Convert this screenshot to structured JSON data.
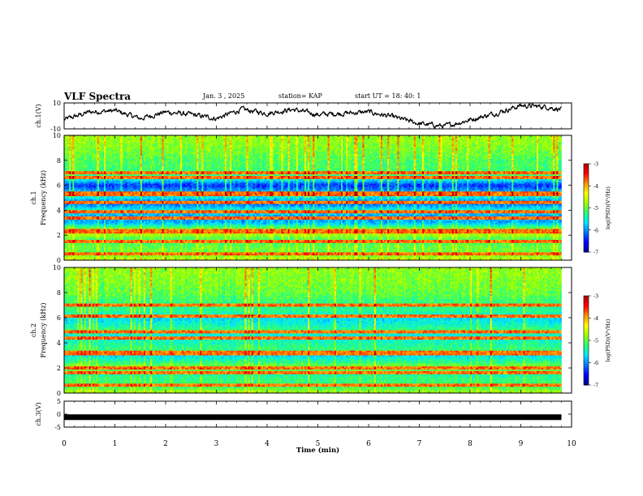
{
  "header": {
    "title": "VLF Spectra",
    "date": "Jan. 3 , 2025",
    "station": "station= KAP",
    "start": "start UT = 18: 40: 1"
  },
  "colors": {
    "trace": "#000000",
    "colormap": [
      "#00008c",
      "#0000ff",
      "#0078ff",
      "#00e6ff",
      "#28ff78",
      "#a0ff00",
      "#ffff00",
      "#ff9000",
      "#ff0000",
      "#aa0000"
    ]
  },
  "chart_data": [
    {
      "type": "line",
      "name": "ch1-waveform",
      "ylabel": "ch.1(V)",
      "yticks": [
        "10",
        "-10"
      ],
      "ylim": [
        -10,
        10
      ],
      "xlim": [
        0,
        10
      ],
      "x": [
        0,
        0.5,
        1.0,
        1.5,
        2.0,
        2.5,
        3.0,
        3.5,
        4.0,
        4.5,
        5.0,
        5.5,
        6.0,
        6.5,
        7.0,
        7.5,
        8.0,
        8.5,
        9.0,
        9.5,
        9.8
      ],
      "values": [
        -3,
        3,
        4,
        -2,
        3,
        1,
        -2,
        5,
        2,
        5,
        1,
        2,
        3,
        -1,
        -6,
        -8,
        -3,
        2,
        8,
        7,
        5
      ]
    },
    {
      "type": "heatmap",
      "name": "ch1-spectrogram",
      "ylabel": "ch.1 Frequency (kHz)",
      "yticks": [
        "0",
        "2",
        "4",
        "6",
        "8",
        "10"
      ],
      "ylim": [
        0,
        10
      ],
      "xlim": [
        0,
        10
      ],
      "data_end_min": 9.8,
      "profile_freq_khz": [
        0,
        0.5,
        1.0,
        1.6,
        2.0,
        2.3,
        3.0,
        3.5,
        4.0,
        4.6,
        5.0,
        5.5,
        6.0,
        6.5,
        7.0,
        8.0,
        9.0,
        10.0
      ],
      "profile_log_psd": [
        -4.6,
        -5.0,
        -5.0,
        -5.2,
        -4.8,
        -4.5,
        -5.9,
        -6.0,
        -5.5,
        -6.3,
        -5.6,
        -5.9,
        -6.4,
        -5.5,
        -5.2,
        -5.1,
        -4.9,
        -4.8
      ],
      "bands_khz": [
        0.5,
        1.5,
        2.2,
        2.4,
        3.4,
        3.9,
        4.6,
        5.2,
        5.4,
        6.6,
        7.0
      ],
      "colorbar": {
        "label": "log(PSD)(V²/Hz)",
        "min": -7,
        "max": -3,
        "ticks": [
          "-3",
          "-4",
          "-5",
          "-6",
          "-7"
        ]
      }
    },
    {
      "type": "heatmap",
      "name": "ch2-spectrogram",
      "ylabel": "ch.2 Frequency (kHz)",
      "yticks": [
        "0",
        "2",
        "4",
        "6",
        "8",
        "10"
      ],
      "ylim": [
        0,
        10
      ],
      "xlim": [
        0,
        10
      ],
      "data_end_min": 9.8,
      "profile_freq_khz": [
        0,
        0.5,
        1.0,
        1.6,
        2.0,
        2.5,
        3.0,
        3.5,
        4.0,
        4.6,
        5.0,
        5.5,
        6.0,
        6.5,
        7.0,
        8.0,
        9.0,
        10.0
      ],
      "profile_log_psd": [
        -4.7,
        -5.2,
        -5.2,
        -5.4,
        -4.8,
        -5.3,
        -5.7,
        -5.2,
        -5.4,
        -5.6,
        -5.2,
        -5.5,
        -5.7,
        -5.3,
        -5.3,
        -5.0,
        -4.9,
        -4.8
      ],
      "bands_khz": [
        0.6,
        1.6,
        2.0,
        3.1,
        3.3,
        4.4,
        4.9,
        6.1,
        7.0
      ],
      "colorbar": {
        "label": "log(PSD)(V²/Hz)",
        "min": -7,
        "max": -3,
        "ticks": [
          "-3",
          "-4",
          "-5",
          "-6",
          "-7"
        ]
      }
    },
    {
      "type": "line",
      "name": "ch3-waveform",
      "ylabel": "ch.3(V)",
      "yticks": [
        "5",
        "0",
        "-5"
      ],
      "ylim": [
        -5,
        5
      ],
      "xlim": [
        0,
        10
      ],
      "x": [
        0,
        9.8
      ],
      "values": [
        -1.2,
        -1.2
      ],
      "xlabel": "Time (min)",
      "xticks": [
        "0",
        "1",
        "2",
        "3",
        "4",
        "5",
        "6",
        "7",
        "8",
        "9",
        "10"
      ]
    }
  ]
}
